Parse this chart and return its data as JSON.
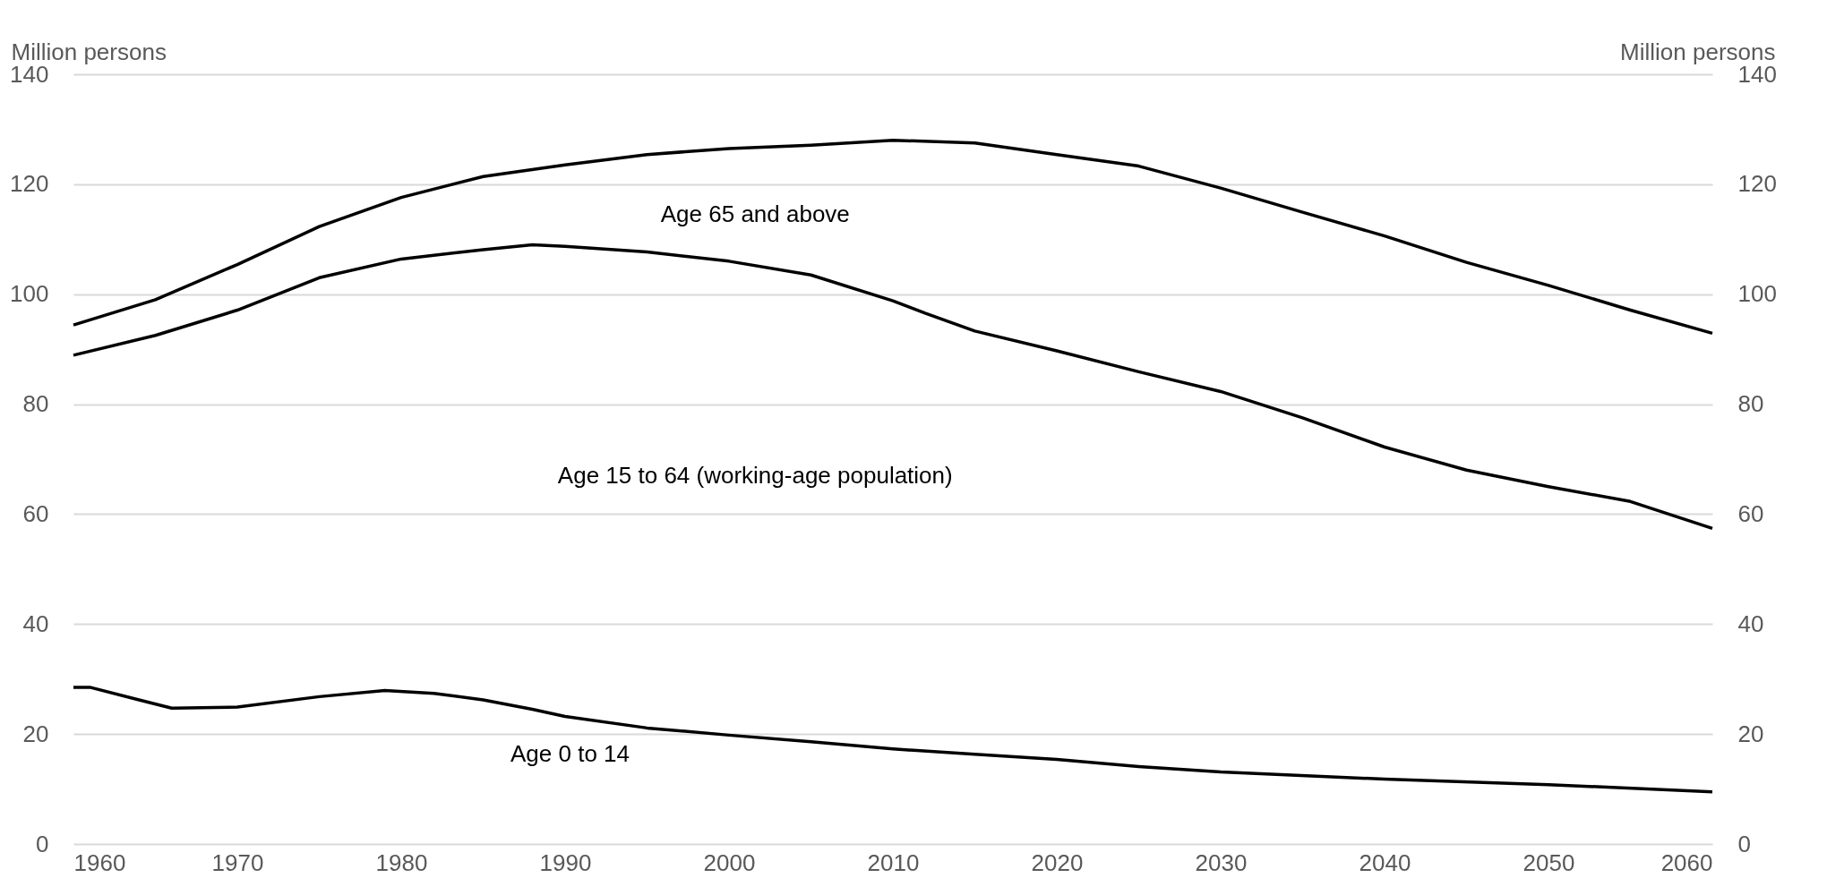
{
  "chart_data": {
    "type": "line",
    "ylabel": "Million persons",
    "y2label": "Million persons",
    "xlim": [
      1960,
      2060
    ],
    "xticks": [
      1960,
      1970,
      1980,
      1990,
      2000,
      2010,
      2020,
      2030,
      2040,
      2050,
      2060
    ],
    "ylim": [
      0,
      140
    ],
    "yticks": [
      0,
      20,
      40,
      60,
      80,
      100,
      120,
      140
    ],
    "y2lim": [
      0,
      140
    ],
    "y2ticks": [
      0,
      20,
      40,
      60,
      80,
      100,
      120,
      140
    ],
    "grid": "y",
    "legend": false,
    "marker": "none",
    "line_style": "solid",
    "annotations": [
      "Age 0 to 14",
      "Age 15 to 64 (working-age population)",
      "Age 65 and above"
    ],
    "series": [
      {
        "color": "#000000",
        "x": [
          1960,
          1961,
          1964,
          1966,
          1970,
          1975,
          1979,
          1982,
          1985,
          1988,
          1990,
          1995,
          2000,
          2005,
          2010,
          2015,
          2020,
          2025,
          2030,
          2040,
          2050,
          2060
        ],
        "values": [
          28.5,
          28.5,
          26.2,
          24.7,
          24.9,
          26.8,
          27.9,
          27.4,
          26.2,
          24.5,
          23.2,
          21.1,
          19.8,
          18.6,
          17.3,
          16.3,
          15.4,
          14.1,
          13.1,
          11.8,
          10.8,
          9.5
        ]
      },
      {
        "color": "#000000",
        "x": [
          1960,
          1965,
          1970,
          1975,
          1980,
          1985,
          1988,
          1990,
          1995,
          2000,
          2005,
          2010,
          2012,
          2015,
          2020,
          2025,
          2030,
          2035,
          2040,
          2045,
          2050,
          2055,
          2060
        ],
        "values": [
          88.9,
          92.5,
          97.1,
          103.0,
          106.4,
          108.1,
          109.0,
          108.7,
          107.7,
          106.0,
          103.5,
          98.8,
          96.5,
          93.3,
          89.7,
          85.9,
          82.3,
          77.5,
          72.2,
          68.0,
          65.0,
          62.3,
          57.4
        ]
      },
      {
        "color": "#000000",
        "x": [
          1960,
          1965,
          1970,
          1975,
          1980,
          1985,
          1990,
          1995,
          2000,
          2005,
          2010,
          2015,
          2020,
          2025,
          2030,
          2035,
          2040,
          2045,
          2050,
          2055,
          2060
        ],
        "values": [
          94.4,
          99.0,
          105.4,
          112.3,
          117.6,
          121.4,
          123.5,
          125.4,
          126.5,
          127.1,
          128.0,
          127.5,
          125.4,
          123.3,
          119.3,
          114.9,
          110.6,
          105.8,
          101.6,
          97.1,
          92.9
        ]
      }
    ]
  }
}
